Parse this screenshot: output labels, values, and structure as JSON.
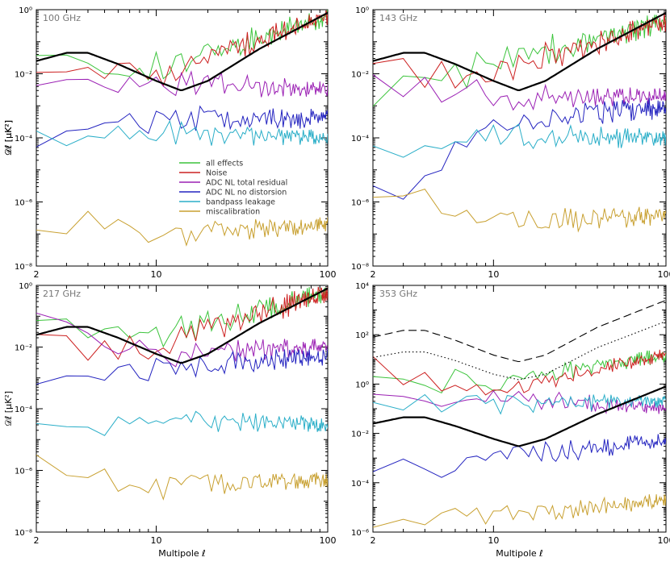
{
  "figure": {
    "y_axis_label": "𝒟ℓ [μK²]",
    "x_axis_label": "Multipole ℓ"
  },
  "legend": {
    "entries": [
      {
        "name": "all effects",
        "color": "#3cc43c"
      },
      {
        "name": "Noise",
        "color": "#cc2020"
      },
      {
        "name": "ADC NL total residual",
        "color": "#9b20b4"
      },
      {
        "name": "ADC NL no distorsion",
        "color": "#2424c0"
      },
      {
        "name": "bandpass leakage",
        "color": "#2aaec8"
      },
      {
        "name": "miscalibration",
        "color": "#c8a030"
      }
    ]
  },
  "chart_data": [
    {
      "type": "line",
      "panel": "100 GHz",
      "title": "100 GHz",
      "xscale": "log",
      "yscale": "log",
      "xlim": [
        2,
        100
      ],
      "ylim": [
        1e-08,
        1
      ],
      "xticks": [
        2,
        10,
        100
      ],
      "yticks": [
        1e-08,
        1e-06,
        0.0001,
        0.01,
        1
      ],
      "yticklabels": [
        "10⁻⁸",
        "10⁻⁶",
        "10⁻⁴",
        "10⁻²",
        "10⁰"
      ],
      "show_y_axis_label": true,
      "show_x_axis_label": false,
      "series": [
        {
          "name": "all effects",
          "color": "#3cc43c",
          "values": {
            "start": 0.04,
            "mid": 0.015,
            "end": 0.6
          }
        },
        {
          "name": "Noise",
          "color": "#cc2020",
          "values": {
            "start": 0.025,
            "mid": 0.01,
            "end": 0.6
          }
        },
        {
          "name": "ADC NL total residual",
          "color": "#9b20b4",
          "values": {
            "start": 0.008,
            "mid": 0.006,
            "end": 0.003
          }
        },
        {
          "name": "ADC NL no distorsion",
          "color": "#2424c0",
          "values": {
            "start": 5e-05,
            "mid": 0.0004,
            "end": 0.0004
          }
        },
        {
          "name": "bandpass leakage",
          "color": "#2aaec8",
          "values": {
            "start": 0.00012,
            "mid": 0.00015,
            "end": 0.0001
          }
        },
        {
          "name": "miscalibration",
          "color": "#c8a030",
          "values": {
            "start": 4e-07,
            "mid": 1e-07,
            "end": 2e-07
          }
        }
      ],
      "reference_curves": [
        {
          "style": "solid",
          "color": "#000000",
          "points": [
            [
              2,
              0.025
            ],
            [
              3,
              0.045
            ],
            [
              4,
              0.045
            ],
            [
              6,
              0.02
            ],
            [
              10,
              0.006
            ],
            [
              14,
              0.003
            ],
            [
              20,
              0.006
            ],
            [
              40,
              0.06
            ],
            [
              100,
              0.8
            ]
          ]
        }
      ]
    },
    {
      "type": "line",
      "panel": "143 GHz",
      "title": "143 GHz",
      "xscale": "log",
      "yscale": "log",
      "xlim": [
        2,
        100
      ],
      "ylim": [
        1e-08,
        1
      ],
      "xticks": [
        2,
        10,
        100
      ],
      "yticks": [
        1e-08,
        1e-06,
        0.0001,
        0.01,
        1
      ],
      "yticklabels": [
        "10⁻⁸",
        "10⁻⁶",
        "10⁻⁴",
        "10⁻²",
        "10⁰"
      ],
      "show_y_axis_label": true,
      "show_x_axis_label": false,
      "series": [
        {
          "name": "all effects",
          "color": "#3cc43c",
          "values": {
            "start": 0.002,
            "mid": 0.02,
            "end": 0.4
          }
        },
        {
          "name": "Noise",
          "color": "#cc2020",
          "values": {
            "start": 0.01,
            "mid": 0.01,
            "end": 0.4
          }
        },
        {
          "name": "ADC NL total residual",
          "color": "#9b20b4",
          "values": {
            "start": 0.008,
            "mid": 0.002,
            "end": 0.002
          }
        },
        {
          "name": "ADC NL no distorsion",
          "color": "#2424c0",
          "values": {
            "start": 8e-07,
            "mid": 0.0003,
            "end": 0.0008
          }
        },
        {
          "name": "bandpass leakage",
          "color": "#2aaec8",
          "values": {
            "start": 3e-05,
            "mid": 0.0001,
            "end": 0.0001
          }
        },
        {
          "name": "miscalibration",
          "color": "#c8a030",
          "values": {
            "start": 5e-06,
            "mid": 2e-07,
            "end": 4e-07
          }
        }
      ],
      "reference_curves": [
        {
          "style": "solid",
          "color": "#000000",
          "points": [
            [
              2,
              0.025
            ],
            [
              3,
              0.045
            ],
            [
              4,
              0.045
            ],
            [
              6,
              0.02
            ],
            [
              10,
              0.006
            ],
            [
              14,
              0.003
            ],
            [
              20,
              0.006
            ],
            [
              40,
              0.06
            ],
            [
              100,
              0.8
            ]
          ]
        }
      ]
    },
    {
      "type": "line",
      "panel": "217 GHz",
      "title": "217 GHz",
      "xscale": "log",
      "yscale": "log",
      "xlim": [
        2,
        100
      ],
      "ylim": [
        1e-08,
        1
      ],
      "xticks": [
        2,
        10,
        100
      ],
      "yticks": [
        1e-08,
        1e-06,
        0.0001,
        0.01,
        1
      ],
      "yticklabels": [
        "10⁻⁸",
        "10⁻⁶",
        "10⁻⁴",
        "10⁻²",
        "10⁰"
      ],
      "show_y_axis_label": true,
      "show_x_axis_label": true,
      "series": [
        {
          "name": "all effects",
          "color": "#3cc43c",
          "values": {
            "start": 0.03,
            "mid": 0.02,
            "end": 0.6
          }
        },
        {
          "name": "Noise",
          "color": "#cc2020",
          "values": {
            "start": 0.008,
            "mid": 0.01,
            "end": 0.6
          }
        },
        {
          "name": "ADC NL total residual",
          "color": "#9b20b4",
          "values": {
            "start": 0.05,
            "mid": 0.006,
            "end": 0.01
          }
        },
        {
          "name": "ADC NL no distorsion",
          "color": "#2424c0",
          "values": {
            "start": 0.0008,
            "mid": 0.002,
            "end": 0.005
          }
        },
        {
          "name": "bandpass leakage",
          "color": "#2aaec8",
          "values": {
            "start": 2e-05,
            "mid": 5e-05,
            "end": 3e-05
          }
        },
        {
          "name": "miscalibration",
          "color": "#c8a030",
          "values": {
            "start": 1e-06,
            "mid": 3e-07,
            "end": 5e-07
          }
        }
      ],
      "reference_curves": [
        {
          "style": "solid",
          "color": "#000000",
          "points": [
            [
              2,
              0.025
            ],
            [
              3,
              0.045
            ],
            [
              4,
              0.045
            ],
            [
              6,
              0.02
            ],
            [
              10,
              0.006
            ],
            [
              14,
              0.003
            ],
            [
              20,
              0.006
            ],
            [
              40,
              0.06
            ],
            [
              100,
              0.8
            ]
          ]
        }
      ]
    },
    {
      "type": "line",
      "panel": "353 GHz",
      "title": "353 GHz",
      "xscale": "log",
      "yscale": "log",
      "xlim": [
        2,
        100
      ],
      "ylim": [
        1e-06,
        10000
      ],
      "xticks": [
        2,
        10,
        100
      ],
      "yticks": [
        1e-06,
        0.0001,
        0.01,
        1,
        100,
        10000
      ],
      "yticklabels": [
        "10⁻⁶",
        "10⁻⁴",
        "10⁻²",
        "10⁰",
        "10²",
        "10⁴"
      ],
      "show_y_axis_label": false,
      "show_x_axis_label": true,
      "series": [
        {
          "name": "all effects",
          "color": "#3cc43c",
          "values": {
            "start": 2,
            "mid": 1,
            "end": 15
          }
        },
        {
          "name": "Noise",
          "color": "#cc2020",
          "values": {
            "start": 5,
            "mid": 0.5,
            "end": 15
          }
        },
        {
          "name": "ADC NL total residual",
          "color": "#9b20b4",
          "values": {
            "start": 0.3,
            "mid": 0.3,
            "end": 0.1
          }
        },
        {
          "name": "ADC NL no distorsion",
          "color": "#2424c0",
          "values": {
            "start": 0.0002,
            "mid": 0.001,
            "end": 0.005
          }
        },
        {
          "name": "bandpass leakage",
          "color": "#2aaec8",
          "values": {
            "start": 0.1,
            "mid": 0.15,
            "end": 0.2
          }
        },
        {
          "name": "miscalibration",
          "color": "#c8a030",
          "values": {
            "start": 3e-06,
            "mid": 4e-06,
            "end": 2e-05
          }
        }
      ],
      "reference_curves": [
        {
          "style": "solid",
          "color": "#000000",
          "points": [
            [
              2,
              0.025
            ],
            [
              3,
              0.045
            ],
            [
              4,
              0.045
            ],
            [
              6,
              0.02
            ],
            [
              10,
              0.006
            ],
            [
              14,
              0.003
            ],
            [
              20,
              0.006
            ],
            [
              40,
              0.06
            ],
            [
              100,
              0.8
            ]
          ]
        },
        {
          "style": "dashed",
          "color": "#000000",
          "points": [
            [
              2,
              80
            ],
            [
              3,
              150
            ],
            [
              4,
              150
            ],
            [
              6,
              60
            ],
            [
              10,
              15
            ],
            [
              14,
              8
            ],
            [
              20,
              15
            ],
            [
              40,
              200
            ],
            [
              100,
              2500
            ]
          ]
        },
        {
          "style": "dotted",
          "color": "#000000",
          "points": [
            [
              2,
              12
            ],
            [
              3,
              20
            ],
            [
              4,
              20
            ],
            [
              6,
              9
            ],
            [
              10,
              2.5
            ],
            [
              14,
              1.5
            ],
            [
              20,
              2.5
            ],
            [
              40,
              30
            ],
            [
              100,
              350
            ]
          ]
        }
      ]
    }
  ]
}
